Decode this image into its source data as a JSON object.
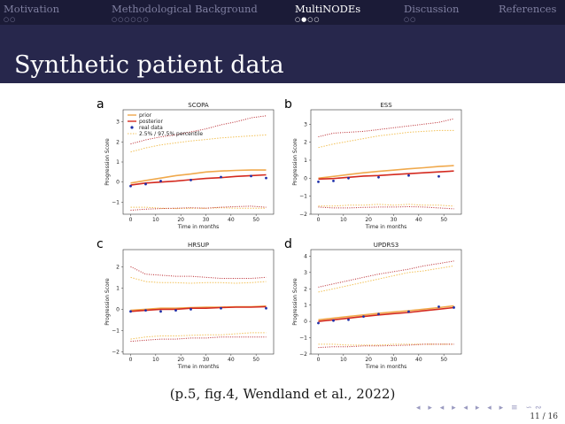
{
  "nav": {
    "sections": [
      {
        "label": "Motivation",
        "dots": "○○",
        "active": false
      },
      {
        "label": "Methodological Background",
        "dots": "○○○○○○",
        "active": false
      },
      {
        "label": "MultiNODEs",
        "dots": "○●○○",
        "active": true
      },
      {
        "label": "Discussion",
        "dots": "○○",
        "active": false
      },
      {
        "label": "References",
        "dots": "",
        "active": false
      }
    ]
  },
  "slide": {
    "title": "Synthetic patient data",
    "caption": "(p.5, fig.4, Wendland et al., 2022)",
    "page": "11 / 16",
    "nav_controls": "◂ ▸ ◂ ▸ ◂ ▸ ◂ ▸ ≡ ∽∾"
  },
  "legend": {
    "prior": "prior",
    "posterior": "posterior",
    "real": "real data",
    "band": "2.5% / 97.5% percentile"
  },
  "colors": {
    "prior": "#f0a94c",
    "posterior": "#d42a1f",
    "real": "#1f2fa8",
    "prior_band": "#f2c25a",
    "posterior_band": "#b8242a",
    "nav_bg": "#1b1b37",
    "title_bg": "#27274c"
  },
  "chart_data": [
    {
      "type": "line",
      "letter": "a",
      "title": "SCOPA",
      "xlabel": "Time in months",
      "ylabel": "Progression Score",
      "xlim": [
        -3,
        57
      ],
      "ylim": [
        -1.6,
        3.6
      ],
      "xticks": [
        0,
        10,
        20,
        30,
        40,
        50
      ],
      "yticks": [
        -1,
        0,
        1,
        2,
        3
      ],
      "legend": "top-left",
      "x": [
        0,
        6,
        12,
        18,
        24,
        30,
        36,
        42,
        48,
        54
      ],
      "series": [
        {
          "key": "prior",
          "values": [
            -0.05,
            0.08,
            0.2,
            0.32,
            0.4,
            0.5,
            0.55,
            0.58,
            0.6,
            0.6
          ]
        },
        {
          "key": "posterior",
          "values": [
            -0.15,
            -0.05,
            0.0,
            0.05,
            0.12,
            0.18,
            0.22,
            0.28,
            0.32,
            0.36
          ]
        },
        {
          "key": "prior_upper",
          "values": [
            1.5,
            1.7,
            1.85,
            1.95,
            2.05,
            2.12,
            2.2,
            2.25,
            2.3,
            2.35
          ]
        },
        {
          "key": "prior_lower",
          "values": [
            -1.25,
            -1.25,
            -1.3,
            -1.32,
            -1.3,
            -1.3,
            -1.28,
            -1.3,
            -1.3,
            -1.3
          ]
        },
        {
          "key": "posterior_upper",
          "values": [
            1.9,
            2.1,
            2.25,
            2.35,
            2.5,
            2.65,
            2.85,
            3.0,
            3.2,
            3.3
          ]
        },
        {
          "key": "posterior_lower",
          "values": [
            -1.4,
            -1.35,
            -1.32,
            -1.3,
            -1.28,
            -1.3,
            -1.25,
            -1.22,
            -1.2,
            -1.25
          ]
        }
      ],
      "real": [
        [
          0,
          -0.2
        ],
        [
          6,
          -0.1
        ],
        [
          12,
          0.05
        ],
        [
          24,
          0.1
        ],
        [
          36,
          0.25
        ],
        [
          48,
          0.3
        ],
        [
          54,
          0.2
        ]
      ]
    },
    {
      "type": "line",
      "letter": "b",
      "title": "ESS",
      "xlabel": "Time in months",
      "ylabel": "Progression Score",
      "xlim": [
        -3,
        57
      ],
      "ylim": [
        -2.0,
        3.8
      ],
      "xticks": [
        0,
        10,
        20,
        30,
        40,
        50
      ],
      "yticks": [
        -2,
        -1,
        0,
        1,
        2,
        3
      ],
      "x": [
        0,
        6,
        12,
        18,
        24,
        30,
        36,
        42,
        48,
        54
      ],
      "series": [
        {
          "key": "prior",
          "values": [
            0.0,
            0.1,
            0.2,
            0.3,
            0.38,
            0.45,
            0.52,
            0.58,
            0.65,
            0.7
          ]
        },
        {
          "key": "posterior",
          "values": [
            -0.05,
            -0.02,
            0.05,
            0.12,
            0.15,
            0.2,
            0.25,
            0.3,
            0.35,
            0.4
          ]
        },
        {
          "key": "prior_upper",
          "values": [
            1.7,
            1.9,
            2.05,
            2.2,
            2.35,
            2.45,
            2.55,
            2.6,
            2.65,
            2.65
          ]
        },
        {
          "key": "prior_lower",
          "values": [
            -1.55,
            -1.55,
            -1.5,
            -1.5,
            -1.45,
            -1.5,
            -1.45,
            -1.5,
            -1.5,
            -1.55
          ]
        },
        {
          "key": "posterior_upper",
          "values": [
            2.3,
            2.5,
            2.55,
            2.6,
            2.7,
            2.8,
            2.9,
            3.0,
            3.1,
            3.3
          ]
        },
        {
          "key": "posterior_lower",
          "values": [
            -1.6,
            -1.65,
            -1.65,
            -1.62,
            -1.6,
            -1.6,
            -1.58,
            -1.6,
            -1.65,
            -1.7
          ]
        }
      ],
      "real": [
        [
          0,
          -0.2
        ],
        [
          6,
          -0.15
        ],
        [
          12,
          0.0
        ],
        [
          24,
          0.05
        ],
        [
          36,
          0.15
        ],
        [
          48,
          0.1
        ]
      ]
    },
    {
      "type": "line",
      "letter": "c",
      "title": "HRSUP",
      "xlabel": "Time in months",
      "ylabel": "Progression Score",
      "xlim": [
        -3,
        57
      ],
      "ylim": [
        -2.1,
        2.8
      ],
      "xticks": [
        0,
        10,
        20,
        30,
        40,
        50
      ],
      "yticks": [
        -2,
        -1,
        0,
        1,
        2
      ],
      "x": [
        0,
        6,
        12,
        18,
        24,
        30,
        36,
        42,
        48,
        54
      ],
      "series": [
        {
          "key": "prior",
          "values": [
            -0.05,
            0.0,
            0.05,
            0.05,
            0.08,
            0.1,
            0.1,
            0.12,
            0.12,
            0.15
          ]
        },
        {
          "key": "posterior",
          "values": [
            -0.1,
            -0.05,
            0.0,
            0.0,
            0.05,
            0.05,
            0.08,
            0.1,
            0.1,
            0.12
          ]
        },
        {
          "key": "prior_upper",
          "values": [
            1.5,
            1.3,
            1.25,
            1.25,
            1.22,
            1.25,
            1.25,
            1.22,
            1.25,
            1.3
          ]
        },
        {
          "key": "prior_lower",
          "values": [
            -1.4,
            -1.3,
            -1.25,
            -1.25,
            -1.22,
            -1.2,
            -1.2,
            -1.15,
            -1.1,
            -1.1
          ]
        },
        {
          "key": "posterior_upper",
          "values": [
            2.0,
            1.65,
            1.6,
            1.55,
            1.55,
            1.5,
            1.45,
            1.45,
            1.45,
            1.5
          ]
        },
        {
          "key": "posterior_lower",
          "values": [
            -1.5,
            -1.45,
            -1.4,
            -1.4,
            -1.35,
            -1.35,
            -1.3,
            -1.3,
            -1.3,
            -1.3
          ]
        }
      ],
      "real": [
        [
          0,
          -0.1
        ],
        [
          6,
          -0.05
        ],
        [
          12,
          -0.1
        ],
        [
          18,
          -0.05
        ],
        [
          24,
          0.0
        ],
        [
          36,
          0.05
        ],
        [
          54,
          0.05
        ]
      ]
    },
    {
      "type": "line",
      "letter": "d",
      "title": "UPDRS3",
      "xlabel": "Time in months",
      "ylabel": "Progression Score",
      "xlim": [
        -3,
        57
      ],
      "ylim": [
        -2.0,
        4.4
      ],
      "xticks": [
        0,
        10,
        20,
        30,
        40,
        50
      ],
      "yticks": [
        -2,
        -1,
        0,
        1,
        2,
        3,
        4
      ],
      "x": [
        0,
        6,
        12,
        18,
        24,
        30,
        36,
        42,
        48,
        54
      ],
      "series": [
        {
          "key": "prior",
          "values": [
            0.1,
            0.2,
            0.3,
            0.4,
            0.5,
            0.58,
            0.66,
            0.75,
            0.85,
            0.95
          ]
        },
        {
          "key": "posterior",
          "values": [
            0.0,
            0.1,
            0.2,
            0.3,
            0.4,
            0.48,
            0.55,
            0.65,
            0.75,
            0.85
          ]
        },
        {
          "key": "prior_upper",
          "values": [
            1.8,
            2.0,
            2.2,
            2.4,
            2.6,
            2.8,
            3.0,
            3.1,
            3.25,
            3.4
          ]
        },
        {
          "key": "prior_lower",
          "values": [
            -1.4,
            -1.4,
            -1.45,
            -1.45,
            -1.45,
            -1.4,
            -1.4,
            -1.4,
            -1.4,
            -1.4
          ]
        },
        {
          "key": "posterior_upper",
          "values": [
            2.1,
            2.3,
            2.5,
            2.7,
            2.9,
            3.05,
            3.2,
            3.4,
            3.55,
            3.7
          ]
        },
        {
          "key": "posterior_lower",
          "values": [
            -1.6,
            -1.55,
            -1.55,
            -1.5,
            -1.5,
            -1.48,
            -1.45,
            -1.4,
            -1.4,
            -1.4
          ]
        }
      ],
      "real": [
        [
          0,
          -0.1
        ],
        [
          6,
          0.05
        ],
        [
          12,
          0.1
        ],
        [
          18,
          0.3
        ],
        [
          24,
          0.45
        ],
        [
          36,
          0.6
        ],
        [
          48,
          0.9
        ],
        [
          54,
          0.85
        ]
      ]
    }
  ]
}
